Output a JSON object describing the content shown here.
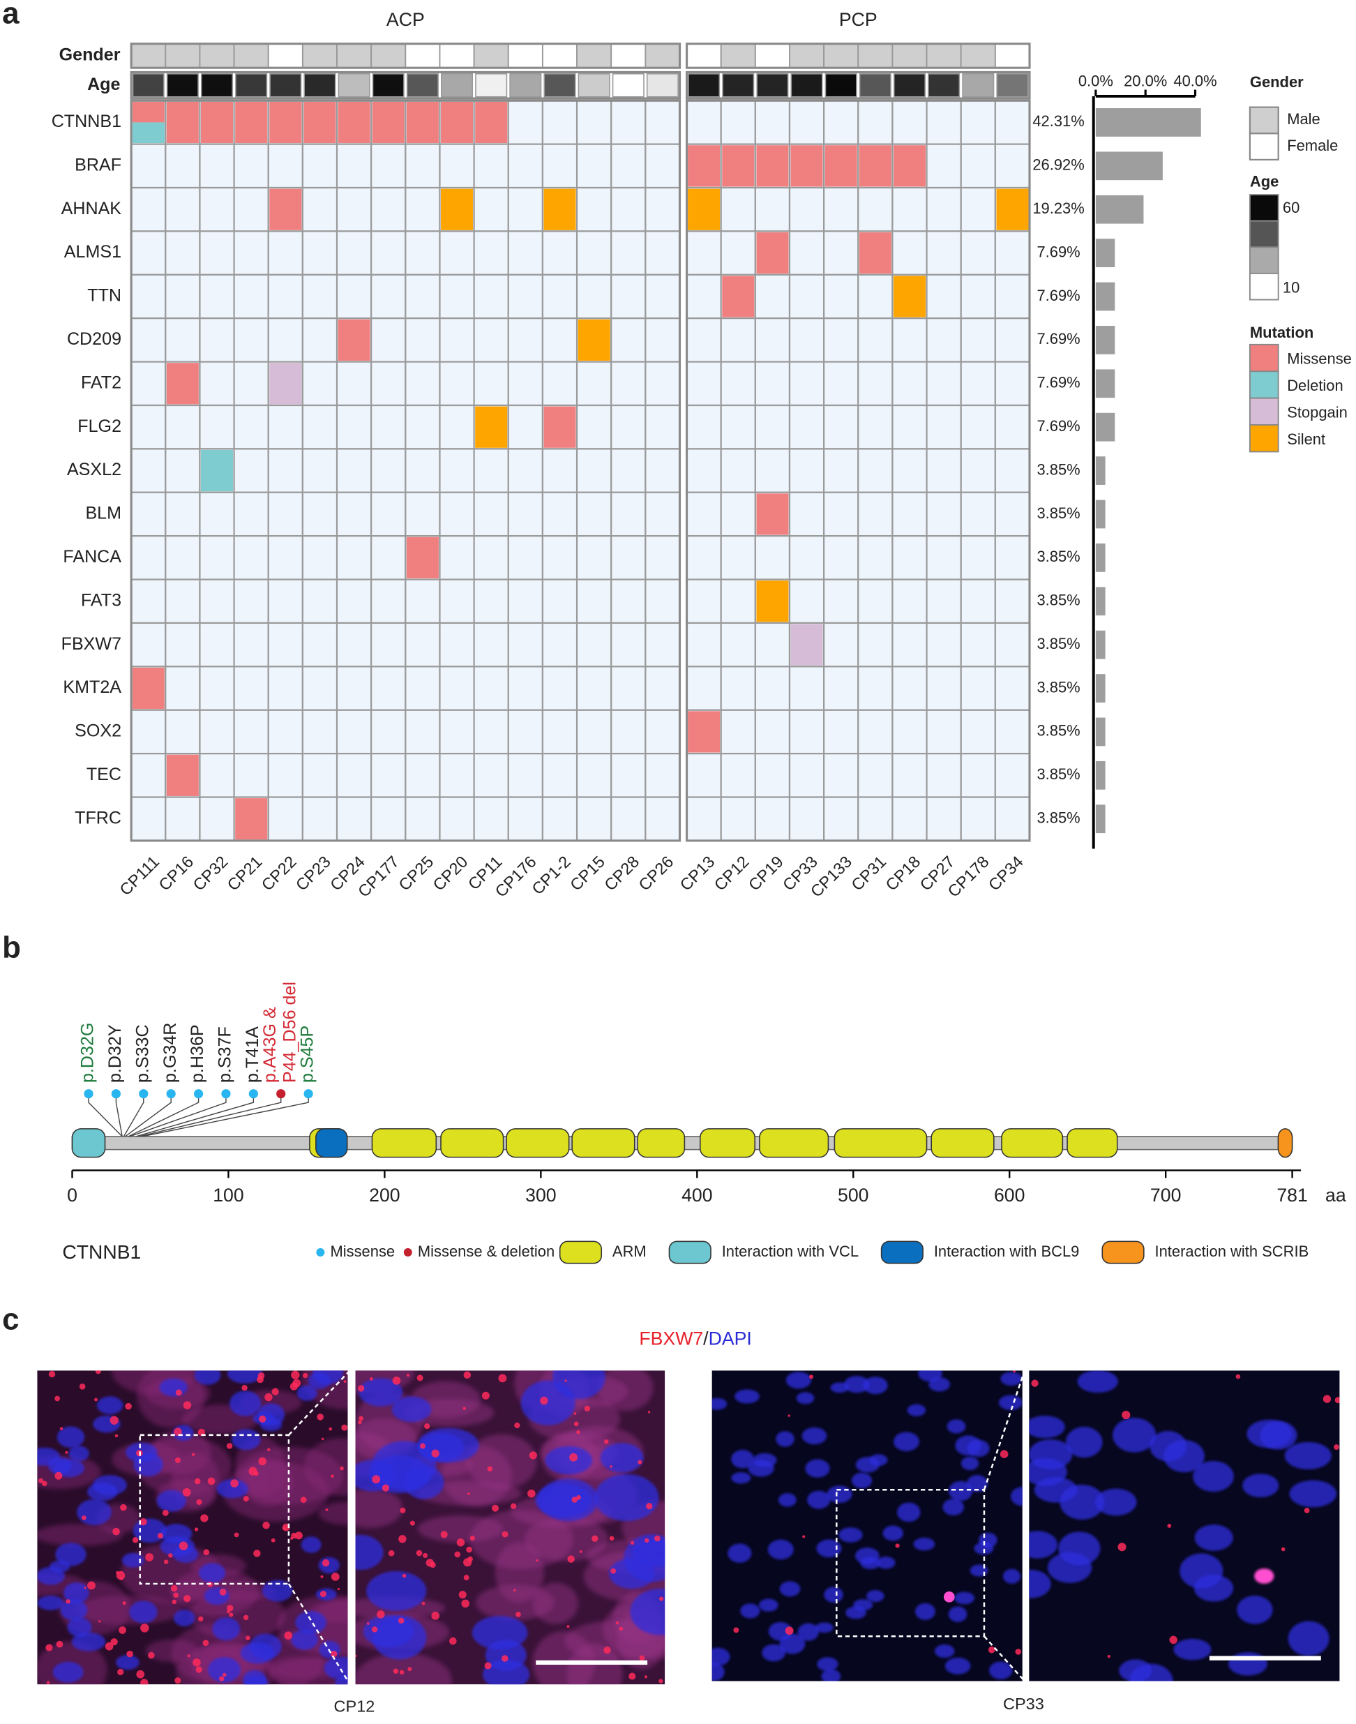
{
  "panel_labels": [
    "a",
    "b",
    "c"
  ],
  "oncoprint": {
    "tracks": [
      "Gender",
      "Age"
    ],
    "genes": [
      "CTNNB1",
      "BRAF",
      "AHNAK",
      "ALMS1",
      "TTN",
      "CD209",
      "FAT2",
      "FLG2",
      "ASXL2",
      "BLM",
      "FANCA",
      "FAT3",
      "FBXW7",
      "KMT2A",
      "SOX2",
      "TEC",
      "TFRC"
    ],
    "groups": [
      {
        "name": "ACP",
        "samples": [
          "CP111",
          "CP16",
          "CP32",
          "CP21",
          "CP22",
          "CP23",
          "CP24",
          "CP177",
          "CP25",
          "CP20",
          "CP11",
          "CP176",
          "CP1-2",
          "CP15",
          "CP28",
          "CP26"
        ],
        "gender": [
          "Male",
          "Male",
          "Male",
          "Male",
          "Female",
          "Male",
          "Male",
          "Male",
          "Female",
          "Female",
          "Male",
          "Female",
          "Female",
          "Male",
          "Female",
          "Male"
        ],
        "age": [
          47,
          57,
          57,
          49,
          50,
          52,
          23,
          57,
          43,
          27,
          13,
          27,
          43,
          20,
          10,
          15
        ],
        "mutations": [
          [
            [
              "Missense",
              "Deletion"
            ],
            "Missense",
            "Missense",
            "Missense",
            "Missense",
            "Missense",
            "Missense",
            "Missense",
            "Missense",
            "Missense",
            "Missense",
            null,
            null,
            null,
            null,
            null
          ],
          [
            null,
            null,
            null,
            null,
            null,
            null,
            null,
            null,
            null,
            null,
            null,
            null,
            null,
            null,
            null,
            null
          ],
          [
            null,
            null,
            null,
            null,
            "Missense",
            null,
            null,
            null,
            null,
            "Silent",
            null,
            null,
            "Silent",
            null,
            null,
            null
          ],
          [
            null,
            null,
            null,
            null,
            null,
            null,
            null,
            null,
            null,
            null,
            null,
            null,
            null,
            null,
            null,
            null
          ],
          [
            null,
            null,
            null,
            null,
            null,
            null,
            null,
            null,
            null,
            null,
            null,
            null,
            null,
            null,
            null,
            null
          ],
          [
            null,
            null,
            null,
            null,
            null,
            null,
            "Missense",
            null,
            null,
            null,
            null,
            null,
            null,
            "Silent",
            null,
            null
          ],
          [
            null,
            "Missense",
            null,
            null,
            "Stopgain",
            null,
            null,
            null,
            null,
            null,
            null,
            null,
            null,
            null,
            null,
            null
          ],
          [
            null,
            null,
            null,
            null,
            null,
            null,
            null,
            null,
            null,
            null,
            "Silent",
            null,
            "Missense",
            null,
            null,
            null
          ],
          [
            null,
            null,
            "Deletion",
            null,
            null,
            null,
            null,
            null,
            null,
            null,
            null,
            null,
            null,
            null,
            null,
            null
          ],
          [
            null,
            null,
            null,
            null,
            null,
            null,
            null,
            null,
            null,
            null,
            null,
            null,
            null,
            null,
            null,
            null
          ],
          [
            null,
            null,
            null,
            null,
            null,
            null,
            null,
            null,
            "Missense",
            null,
            null,
            null,
            null,
            null,
            null,
            null
          ],
          [
            null,
            null,
            null,
            null,
            null,
            null,
            null,
            null,
            null,
            null,
            null,
            null,
            null,
            null,
            null,
            null
          ],
          [
            null,
            null,
            null,
            null,
            null,
            null,
            null,
            null,
            null,
            null,
            null,
            null,
            null,
            null,
            null,
            null
          ],
          [
            "Missense",
            null,
            null,
            null,
            null,
            null,
            null,
            null,
            null,
            null,
            null,
            null,
            null,
            null,
            null,
            null
          ],
          [
            null,
            null,
            null,
            null,
            null,
            null,
            null,
            null,
            null,
            null,
            null,
            null,
            null,
            null,
            null,
            null
          ],
          [
            null,
            "Missense",
            null,
            null,
            null,
            null,
            null,
            null,
            null,
            null,
            null,
            null,
            null,
            null,
            null,
            null
          ],
          [
            null,
            null,
            null,
            "Missense",
            null,
            null,
            null,
            null,
            null,
            null,
            null,
            null,
            null,
            null,
            null,
            null
          ]
        ]
      },
      {
        "name": "PCP",
        "samples": [
          "CP13",
          "CP12",
          "CP19",
          "CP33",
          "CP133",
          "CP31",
          "CP18",
          "CP27",
          "CP178",
          "CP34"
        ],
        "gender": [
          "Female",
          "Male",
          "Female",
          "Male",
          "Male",
          "Male",
          "Male",
          "Male",
          "Male",
          "Female"
        ],
        "age": [
          55,
          53,
          53,
          55,
          58,
          43,
          53,
          50,
          27,
          37
        ],
        "mutations": [
          [
            null,
            null,
            null,
            null,
            null,
            null,
            null,
            null,
            null,
            null
          ],
          [
            "Missense",
            "Missense",
            "Missense",
            "Missense",
            "Missense",
            "Missense",
            "Missense",
            null,
            null,
            null
          ],
          [
            "Silent",
            null,
            null,
            null,
            null,
            null,
            null,
            null,
            null,
            "Silent"
          ],
          [
            null,
            null,
            "Missense",
            null,
            null,
            "Missense",
            null,
            null,
            null,
            null
          ],
          [
            null,
            "Missense",
            null,
            null,
            null,
            null,
            "Silent",
            null,
            null,
            null
          ],
          [
            null,
            null,
            null,
            null,
            null,
            null,
            null,
            null,
            null,
            null
          ],
          [
            null,
            null,
            null,
            null,
            null,
            null,
            null,
            null,
            null,
            null
          ],
          [
            null,
            null,
            null,
            null,
            null,
            null,
            null,
            null,
            null,
            null
          ],
          [
            null,
            null,
            null,
            null,
            null,
            null,
            null,
            null,
            null,
            null
          ],
          [
            null,
            null,
            "Missense",
            null,
            null,
            null,
            null,
            null,
            null,
            null
          ],
          [
            null,
            null,
            null,
            null,
            null,
            null,
            null,
            null,
            null,
            null
          ],
          [
            null,
            null,
            "Silent",
            null,
            null,
            null,
            null,
            null,
            null,
            null
          ],
          [
            null,
            null,
            null,
            "Stopgain",
            null,
            null,
            null,
            null,
            null,
            null
          ],
          [
            null,
            null,
            null,
            null,
            null,
            null,
            null,
            null,
            null,
            null
          ],
          [
            "Missense",
            null,
            null,
            null,
            null,
            null,
            null,
            null,
            null,
            null
          ],
          [
            null,
            null,
            null,
            null,
            null,
            null,
            null,
            null,
            null,
            null
          ],
          [
            null,
            null,
            null,
            null,
            null,
            null,
            null,
            null,
            null,
            null
          ]
        ]
      }
    ],
    "frequency": {
      "type": "bar",
      "values": [
        42.31,
        26.92,
        19.23,
        7.69,
        7.69,
        7.69,
        7.69,
        7.69,
        3.85,
        3.85,
        3.85,
        3.85,
        3.85,
        3.85,
        3.85,
        3.85,
        3.85
      ],
      "value_labels": [
        "42.31%",
        "26.92%",
        "19.23%",
        "7.69%",
        "7.69%",
        "7.69%",
        "7.69%",
        "7.69%",
        "3.85%",
        "3.85%",
        "3.85%",
        "3.85%",
        "3.85%",
        "3.85%",
        "3.85%",
        "3.85%",
        "3.85%"
      ],
      "color": "#9e9e9e",
      "xlim": [
        0,
        40
      ],
      "xticks": [
        {
          "value": 0,
          "label": "0.0%"
        },
        {
          "value": 20,
          "label": "20.0%"
        },
        {
          "value": 40,
          "label": "40.0%"
        }
      ]
    },
    "legend": {
      "gender": {
        "title": "Gender",
        "items": [
          {
            "name": "Male",
            "color": "#cfcfcf"
          },
          {
            "name": "Female",
            "color": "#ffffff"
          }
        ]
      },
      "age": {
        "title": "Age",
        "range": [
          10,
          60
        ]
      },
      "mutation": {
        "title": "Mutation",
        "items": [
          {
            "name": "Missense",
            "color": "#f08080"
          },
          {
            "name": "Deletion",
            "color": "#7ecbd0"
          },
          {
            "name": "Stopgain",
            "color": "#d6bcd6"
          },
          {
            "name": "Silent",
            "color": "#ffa500"
          }
        ]
      }
    }
  },
  "protein": {
    "name": "CTNNB1",
    "xlim": [
      0,
      781
    ],
    "xticks": [
      0,
      100,
      200,
      300,
      400,
      500,
      600,
      700,
      781
    ],
    "unit": "aa",
    "domains": [
      {
        "type": "Interaction with VCL",
        "start": 0,
        "end": 21
      },
      {
        "type": "ARM",
        "start": 152,
        "end": 176
      },
      {
        "type": "Interaction with BCL9",
        "start": 156,
        "end": 176
      },
      {
        "type": "ARM",
        "start": 192,
        "end": 233
      },
      {
        "type": "ARM",
        "start": 236,
        "end": 276
      },
      {
        "type": "ARM",
        "start": 278,
        "end": 318
      },
      {
        "type": "ARM",
        "start": 320,
        "end": 360
      },
      {
        "type": "ARM",
        "start": 362,
        "end": 392
      },
      {
        "type": "ARM",
        "start": 402,
        "end": 437
      },
      {
        "type": "ARM",
        "start": 440,
        "end": 484
      },
      {
        "type": "ARM",
        "start": 488,
        "end": 547
      },
      {
        "type": "ARM",
        "start": 550,
        "end": 590
      },
      {
        "type": "ARM",
        "start": 595,
        "end": 634
      },
      {
        "type": "ARM",
        "start": 637,
        "end": 669
      },
      {
        "type": "Interaction with SCRIB",
        "start": 772,
        "end": 781
      }
    ],
    "mutations": [
      {
        "position": 32,
        "label_lines": [
          "p.D32G"
        ],
        "label_color": "#1e7b3c",
        "type": "Missense"
      },
      {
        "position": 32,
        "label_lines": [
          "p.D32Y"
        ],
        "label_color": "#222222",
        "type": "Missense"
      },
      {
        "position": 33,
        "label_lines": [
          "p.S33C"
        ],
        "label_color": "#222222",
        "type": "Missense"
      },
      {
        "position": 34,
        "label_lines": [
          "p.G34R"
        ],
        "label_color": "#222222",
        "type": "Missense"
      },
      {
        "position": 36,
        "label_lines": [
          "p.H36P"
        ],
        "label_color": "#222222",
        "type": "Missense"
      },
      {
        "position": 37,
        "label_lines": [
          "p.S37F"
        ],
        "label_color": "#222222",
        "type": "Missense"
      },
      {
        "position": 41,
        "label_lines": [
          "p.T41A"
        ],
        "label_color": "#222222",
        "type": "Missense"
      },
      {
        "position": 43,
        "label_lines": [
          "p.A43G &",
          "P44_D56 del"
        ],
        "label_color": "#d42a35",
        "type": "Missense & deletion"
      },
      {
        "position": 45,
        "label_lines": [
          "p.S45P"
        ],
        "label_color": "#1e7b3c",
        "type": "Missense"
      }
    ],
    "legend": [
      {
        "name": "Missense",
        "color": "#29b6f0",
        "shape": "dot"
      },
      {
        "name": "Missense & deletion",
        "color": "#c4202e",
        "shape": "dot"
      },
      {
        "name": "ARM",
        "color": "#dde01e",
        "shape": "box"
      },
      {
        "name": "Interaction with VCL",
        "color": "#6cc7d0",
        "shape": "box"
      },
      {
        "name": "Interaction with BCL9",
        "color": "#0b6fbf",
        "shape": "box"
      },
      {
        "name": "Interaction with SCRIB",
        "color": "#f7941d",
        "shape": "box"
      }
    ]
  },
  "imaging": {
    "title": [
      {
        "text": "FBXW7",
        "color": "#e8202a"
      },
      {
        "text": "/",
        "color": "#222222"
      },
      {
        "text": "DAPI",
        "color": "#2a2ad6"
      }
    ],
    "captions": [
      "CP12",
      "CP33"
    ]
  }
}
